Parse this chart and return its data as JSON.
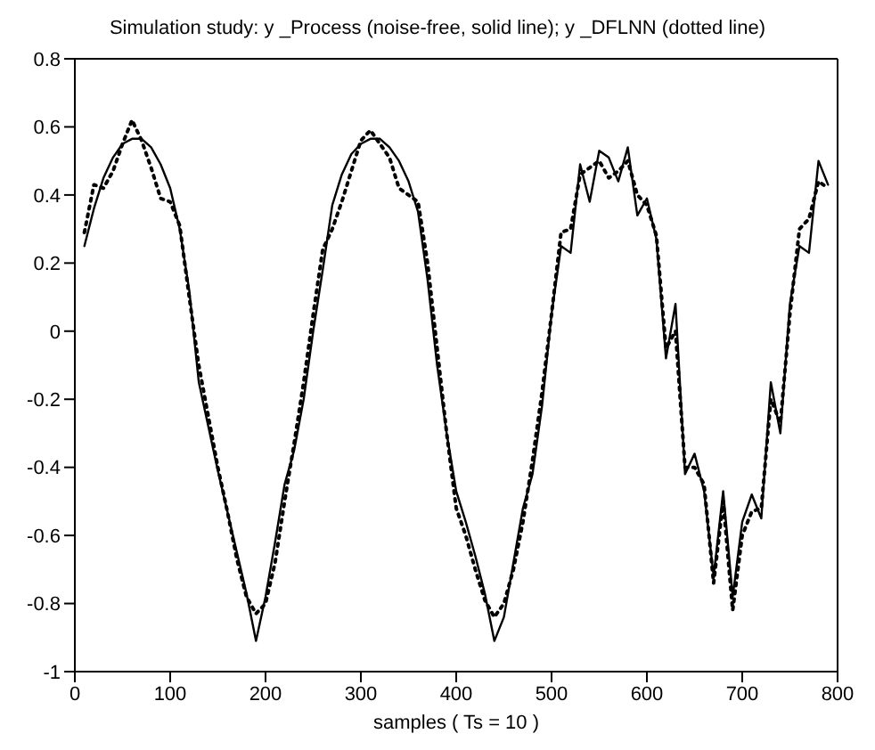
{
  "chart_data": {
    "type": "line",
    "title": "Simulation study: y _Process (noise-free, solid line); y _DFLNN (dotted line)",
    "xlabel": "samples   ( Ts = 10 )",
    "x": [
      10,
      20,
      30,
      40,
      50,
      60,
      70,
      80,
      90,
      100,
      110,
      120,
      130,
      140,
      150,
      160,
      170,
      180,
      190,
      200,
      210,
      220,
      230,
      240,
      250,
      260,
      270,
      280,
      290,
      300,
      310,
      320,
      330,
      340,
      350,
      360,
      370,
      380,
      390,
      400,
      410,
      420,
      430,
      440,
      450,
      460,
      470,
      480,
      490,
      500,
      510,
      520,
      530,
      540,
      550,
      560,
      570,
      580,
      590,
      600,
      610,
      620,
      630,
      640,
      650,
      660,
      670,
      680,
      690,
      700,
      710,
      720,
      730,
      740,
      750,
      760,
      770,
      780,
      790
    ],
    "series": [
      {
        "color": "#000000",
        "line_style": "solid",
        "values": [
          0.25,
          0.36,
          0.45,
          0.51,
          0.55,
          0.565,
          0.565,
          0.54,
          0.49,
          0.42,
          0.3,
          0.12,
          -0.15,
          -0.28,
          -0.41,
          -0.53,
          -0.65,
          -0.77,
          -0.91,
          -0.78,
          -0.62,
          -0.45,
          -0.35,
          -0.2,
          0.0,
          0.18,
          0.37,
          0.46,
          0.52,
          0.55,
          0.565,
          0.565,
          0.54,
          0.5,
          0.44,
          0.35,
          0.15,
          -0.1,
          -0.3,
          -0.47,
          -0.56,
          -0.66,
          -0.77,
          -0.91,
          -0.84,
          -0.68,
          -0.52,
          -0.42,
          -0.22,
          0.05,
          0.25,
          0.23,
          0.49,
          0.38,
          0.53,
          0.51,
          0.44,
          0.54,
          0.34,
          0.39,
          0.27,
          -0.08,
          0.08,
          -0.42,
          -0.36,
          -0.47,
          -0.72,
          -0.47,
          -0.78,
          -0.56,
          -0.48,
          -0.55,
          -0.15,
          -0.3,
          0.08,
          0.25,
          0.23,
          0.5,
          0.43
        ]
      },
      {
        "color": "#000000",
        "line_style": "dotted",
        "values": [
          0.29,
          0.43,
          0.42,
          0.47,
          0.55,
          0.62,
          0.56,
          0.48,
          0.39,
          0.38,
          0.31,
          0.1,
          -0.1,
          -0.25,
          -0.4,
          -0.53,
          -0.67,
          -0.78,
          -0.83,
          -0.8,
          -0.68,
          -0.5,
          -0.33,
          -0.15,
          0.05,
          0.24,
          0.3,
          0.38,
          0.47,
          0.56,
          0.59,
          0.55,
          0.51,
          0.42,
          0.4,
          0.38,
          0.2,
          -0.05,
          -0.3,
          -0.52,
          -0.6,
          -0.7,
          -0.79,
          -0.84,
          -0.8,
          -0.7,
          -0.56,
          -0.38,
          -0.18,
          0.05,
          0.29,
          0.3,
          0.46,
          0.48,
          0.5,
          0.45,
          0.47,
          0.5,
          0.4,
          0.37,
          0.28,
          -0.05,
          0.0,
          -0.4,
          -0.4,
          -0.45,
          -0.74,
          -0.5,
          -0.82,
          -0.6,
          -0.53,
          -0.52,
          -0.2,
          -0.27,
          0.05,
          0.3,
          0.33,
          0.44,
          0.42
        ]
      }
    ],
    "xlim": [
      0,
      800
    ],
    "xticks": [
      0,
      100,
      200,
      300,
      400,
      500,
      600,
      700,
      800
    ],
    "ylim": [
      -1,
      0.8
    ],
    "yticks": [
      -1,
      -0.8,
      -0.6,
      -0.4,
      -0.2,
      0,
      0.2,
      0.4,
      0.6,
      0.8
    ],
    "grid": false,
    "legend": false,
    "marker": "none"
  }
}
